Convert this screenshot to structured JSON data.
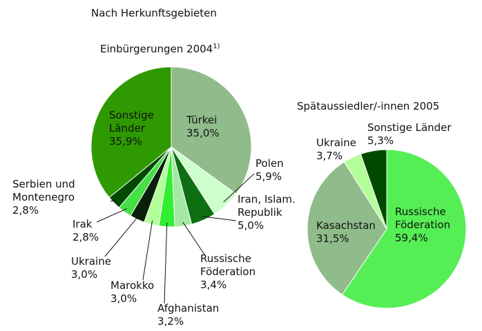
{
  "heading": "Nach Herkunftsgebieten",
  "chart_data": [
    {
      "type": "pie",
      "title": "Einbürgerungen 2004",
      "title_note": "1)",
      "categories": [
        "Türkei",
        "Polen",
        "Iran, Islam. Republik",
        "Russische Föderation",
        "Afghanistan",
        "Marokko",
        "Ukraine",
        "Irak",
        "Serbien und Montenegro",
        "Sonstige Länder"
      ],
      "values": [
        35.0,
        5.9,
        5.0,
        3.4,
        3.2,
        3.0,
        3.0,
        2.8,
        2.8,
        35.9
      ],
      "value_labels": [
        "35,0%",
        "5,9%",
        "5,0%",
        "3,4%",
        "3,2%",
        "3,0%",
        "3,0%",
        "2,8%",
        "2,8%",
        "35,9%"
      ],
      "colors": [
        "#8fbc8a",
        "#ccffcc",
        "#0d6e12",
        "#a3e8a3",
        "#33ee33",
        "#b3ff99",
        "#0a1f0a",
        "#44e044",
        "#004a00",
        "#2e9900"
      ]
    },
    {
      "type": "pie",
      "title": "Spätaussiedler/-innen 2005",
      "categories": [
        "Russische Föderation",
        "Kasachstan",
        "Ukraine",
        "Sonstige Länder"
      ],
      "values": [
        59.4,
        31.5,
        3.7,
        5.3
      ],
      "value_labels": [
        "59,4%",
        "31,5%",
        "3,7%",
        "5,3%"
      ],
      "colors": [
        "#55ee55",
        "#8fbc8a",
        "#b3ff99",
        "#004a00"
      ]
    }
  ]
}
